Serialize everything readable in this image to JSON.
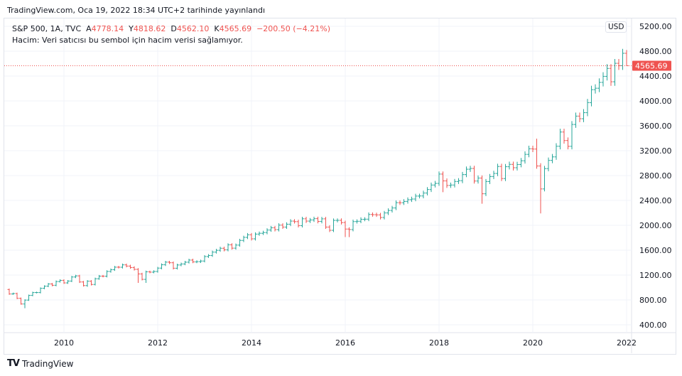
{
  "published": "TradingView.com, Oca 19, 2022 18:34 UTC+2 tarihinde yayınlandı",
  "legend": {
    "symbol": "S&P 500, 1A, TVC",
    "o_label": "A",
    "o": "4778.14",
    "h_label": "Y",
    "h": "4818.62",
    "l_label": "D",
    "l": "4562.10",
    "c_label": "K",
    "c": "4565.69",
    "change": "−200.50 (−4.21%)",
    "volume_note": "Hacim: Veri satıcısı bu sembol için hacim verisi sağlamıyor."
  },
  "currency": "USD",
  "brand": "TradingView",
  "colors": {
    "up": "#26a69a",
    "down": "#ef5350",
    "grid": "#f0f3fa"
  },
  "chart_data": {
    "type": "ohlc-bar",
    "interval": "1 month",
    "start": "2008-11",
    "last_price": 4565.69,
    "last_price_label": "4565.69",
    "ylim": [
      300,
      5250
    ],
    "y_ticks": [
      "400.00",
      "800.00",
      "1200.00",
      "1600.00",
      "2000.00",
      "2400.00",
      "2800.00",
      "3200.00",
      "3600.00",
      "4000.00",
      "4400.00",
      "4800.00",
      "5200.00"
    ],
    "x_ticks": [
      "2010",
      "2012",
      "2014",
      "2016",
      "2018",
      "2020",
      "2022"
    ],
    "grid": true,
    "first_open": 968,
    "closes": [
      896,
      903,
      826,
      735,
      798,
      873,
      919,
      919,
      987,
      1021,
      1057,
      1036,
      1096,
      1115,
      1074,
      1104,
      1169,
      1187,
      1089,
      1031,
      1102,
      1049,
      1141,
      1183,
      1181,
      1258,
      1286,
      1327,
      1326,
      1364,
      1345,
      1321,
      1292,
      1219,
      1131,
      1253,
      1247,
      1258,
      1312,
      1366,
      1408,
      1398,
      1310,
      1362,
      1379,
      1407,
      1441,
      1412,
      1416,
      1426,
      1498,
      1515,
      1569,
      1598,
      1631,
      1606,
      1686,
      1633,
      1682,
      1757,
      1806,
      1848,
      1783,
      1859,
      1872,
      1884,
      1924,
      1960,
      1931,
      2003,
      1972,
      2018,
      2068,
      2059,
      1995,
      2105,
      2068,
      2086,
      2107,
      2063,
      2104,
      1972,
      1920,
      2079,
      2080,
      2044,
      1940,
      1932,
      2060,
      2065,
      2097,
      2099,
      2174,
      2171,
      2168,
      2126,
      2199,
      2239,
      2279,
      2364,
      2363,
      2384,
      2412,
      2423,
      2470,
      2472,
      2519,
      2575,
      2648,
      2674,
      2824,
      2714,
      2641,
      2648,
      2705,
      2718,
      2816,
      2902,
      2914,
      2712,
      2760,
      2507,
      2704,
      2784,
      2834,
      2946,
      2752,
      2942,
      2980,
      2926,
      2977,
      3038,
      3141,
      3231,
      3226,
      2954,
      2585,
      2912,
      3044,
      3100,
      3271,
      3500,
      3363,
      3270,
      3622,
      3756,
      3714,
      3811,
      3973,
      4181,
      4204,
      4298,
      4395,
      4523,
      4308,
      4605,
      4567,
      4766,
      4566
    ],
    "notable_lows": {
      "2009-03": 667,
      "2010-07": 1011,
      "2011-08": 1074,
      "2011-10": 1075,
      "2016-01": 1812,
      "2016-02": 1810,
      "2018-02": 2533,
      "2018-12": 2347,
      "2020-03": 2192,
      "2022-01": 4562
    },
    "notable_highs": {
      "2020-02": 3393,
      "2022-01": 4818
    }
  }
}
